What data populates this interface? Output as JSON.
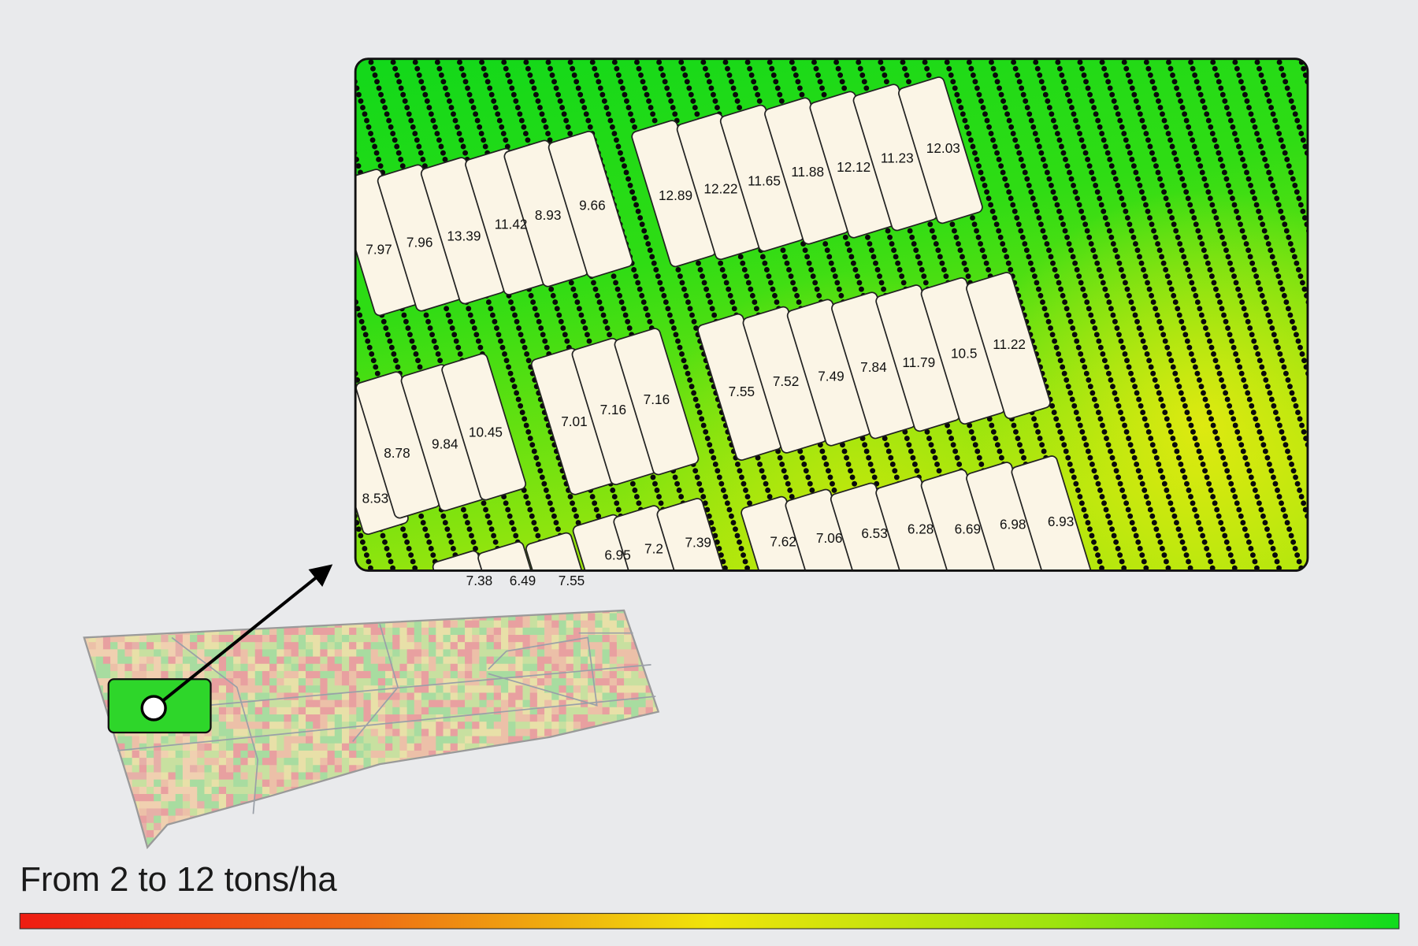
{
  "zoom": {
    "plots": [
      {
        "label": "7.97"
      },
      {
        "label": "7.96"
      },
      {
        "label": "13.39"
      },
      {
        "label": "11.42"
      },
      {
        "label": "8.93"
      },
      {
        "label": "9.66"
      },
      {
        "label": "12.89"
      },
      {
        "label": "12.22"
      },
      {
        "label": "11.65"
      },
      {
        "label": "11.88"
      },
      {
        "label": "12.12"
      },
      {
        "label": "11.23"
      },
      {
        "label": "12.03"
      },
      {
        "label": "8.53"
      },
      {
        "label": "8.78"
      },
      {
        "label": "9.84"
      },
      {
        "label": "10.45"
      },
      {
        "label": "7.01"
      },
      {
        "label": "7.16"
      },
      {
        "label": "7.16"
      },
      {
        "label": "7.55"
      },
      {
        "label": "7.52"
      },
      {
        "label": "7.49"
      },
      {
        "label": "7.84"
      },
      {
        "label": "11.79"
      },
      {
        "label": "10.5"
      },
      {
        "label": "11.22"
      },
      {
        "label": "7.38"
      },
      {
        "label": "6.49"
      },
      {
        "label": "7.55"
      },
      {
        "label": "6.95"
      },
      {
        "label": "7.2"
      },
      {
        "label": "7.39"
      },
      {
        "label": "7.62"
      },
      {
        "label": "7.06"
      },
      {
        "label": "6.53"
      },
      {
        "label": "6.28"
      },
      {
        "label": "6.69"
      },
      {
        "label": "6.98"
      },
      {
        "label": "6.93"
      }
    ]
  },
  "legend": {
    "title": "From 2 to 12 tons/ha"
  }
}
